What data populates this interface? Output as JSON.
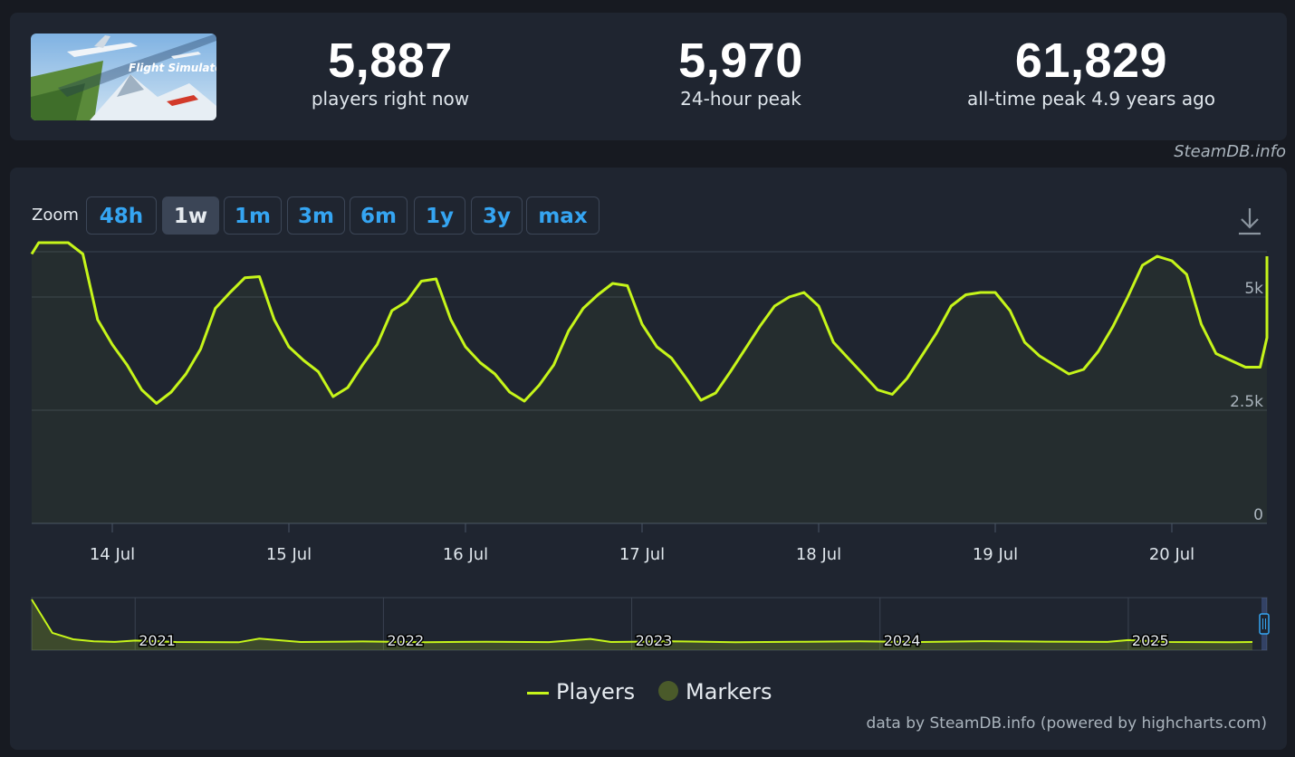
{
  "header": {
    "thumbnail": {
      "label": "Flight Simulator",
      "alt": "Microsoft Flight Simulator"
    },
    "stats": [
      {
        "value": "5,887",
        "label": "players right now"
      },
      {
        "value": "5,970",
        "label": "24-hour peak"
      },
      {
        "value": "61,829",
        "label": "all-time peak 4.9 years ago"
      }
    ],
    "credit": "SteamDB.info"
  },
  "zoom": {
    "label": "Zoom",
    "buttons": [
      "48h",
      "1w",
      "1m",
      "3m",
      "6m",
      "1y",
      "3y",
      "max"
    ],
    "active": "1w"
  },
  "download_icon": "download-icon",
  "colors": {
    "line": "#c6f51a",
    "background": "#1f2530",
    "accent": "#35a5f2",
    "marker": "#4a5a2a"
  },
  "chart_data": [
    {
      "type": "line",
      "ylim": [
        0,
        6000
      ],
      "yticks": [
        "0",
        "2.5k",
        "5k"
      ],
      "x_tick_labels": [
        "14 Jul",
        "15 Jul",
        "16 Jul",
        "17 Jul",
        "18 Jul",
        "19 Jul",
        "20 Jul"
      ],
      "grid": true,
      "series": [
        {
          "name": "Players",
          "x": [
            "13 Jul 12:00",
            "13 Jul 14:00",
            "13 Jul 16:00",
            "13 Jul 18:00",
            "13 Jul 20:00",
            "13 Jul 22:00",
            "14 Jul 00:00",
            "14 Jul 02:00",
            "14 Jul 04:00",
            "14 Jul 06:00",
            "14 Jul 08:00",
            "14 Jul 10:00",
            "14 Jul 12:00",
            "14 Jul 14:00",
            "14 Jul 16:00",
            "14 Jul 18:00",
            "14 Jul 20:00",
            "14 Jul 22:00",
            "15 Jul 00:00",
            "15 Jul 02:00",
            "15 Jul 04:00",
            "15 Jul 06:00",
            "15 Jul 08:00",
            "15 Jul 10:00",
            "15 Jul 12:00",
            "15 Jul 14:00",
            "15 Jul 16:00",
            "15 Jul 18:00",
            "15 Jul 20:00",
            "15 Jul 22:00",
            "16 Jul 00:00",
            "16 Jul 02:00",
            "16 Jul 04:00",
            "16 Jul 06:00",
            "16 Jul 08:00",
            "16 Jul 10:00",
            "16 Jul 12:00",
            "16 Jul 14:00",
            "16 Jul 16:00",
            "16 Jul 18:00",
            "16 Jul 20:00",
            "16 Jul 22:00",
            "17 Jul 00:00",
            "17 Jul 02:00",
            "17 Jul 04:00",
            "17 Jul 06:00",
            "17 Jul 08:00",
            "17 Jul 10:00",
            "17 Jul 12:00",
            "17 Jul 14:00",
            "17 Jul 16:00",
            "17 Jul 18:00",
            "17 Jul 20:00",
            "17 Jul 22:00",
            "18 Jul 00:00",
            "18 Jul 02:00",
            "18 Jul 04:00",
            "18 Jul 06:00",
            "18 Jul 08:00",
            "18 Jul 10:00",
            "18 Jul 12:00",
            "18 Jul 14:00",
            "18 Jul 16:00",
            "18 Jul 18:00",
            "18 Jul 20:00",
            "18 Jul 22:00",
            "19 Jul 00:00",
            "19 Jul 02:00",
            "19 Jul 04:00",
            "19 Jul 06:00",
            "19 Jul 08:00",
            "19 Jul 10:00",
            "19 Jul 12:00",
            "19 Jul 14:00",
            "19 Jul 16:00",
            "19 Jul 18:00",
            "19 Jul 20:00",
            "19 Jul 22:00",
            "20 Jul 00:00",
            "20 Jul 02:00",
            "20 Jul 04:00",
            "20 Jul 06:00",
            "20 Jul 08:00",
            "20 Jul 10:00",
            "20 Jul 12:00",
            "20 Jul 14:00",
            "20 Jul 16:00"
          ],
          "values": [
            5950,
            6200,
            6200,
            6200,
            5950,
            4500,
            3950,
            3500,
            2950,
            2650,
            2900,
            3300,
            3850,
            4750,
            5100,
            5425,
            5450,
            4500,
            3900,
            3600,
            3350,
            2800,
            3000,
            3500,
            3950,
            4700,
            4900,
            5350,
            5400,
            4500,
            3900,
            3550,
            3300,
            2900,
            2700,
            3050,
            3500,
            4250,
            4750,
            5050,
            5300,
            5250,
            4400,
            3900,
            3650,
            3200,
            2720,
            2880,
            3350,
            3850,
            4350,
            4800,
            5000,
            5100,
            4800,
            4000,
            3650,
            3300,
            2950,
            2850,
            3200,
            3700,
            4200,
            4800,
            5050,
            5100,
            5100,
            4700,
            4000,
            3700,
            3500,
            3300,
            3400,
            3800,
            4350,
            5000,
            5700,
            5900,
            5800,
            5500,
            4400,
            3750,
            3600,
            3450,
            3450,
            4100,
            5900
          ]
        }
      ]
    },
    {
      "type": "area",
      "x_tick_labels": [
        "2021",
        "2022",
        "2023",
        "2024",
        "2025"
      ],
      "series": [
        {
          "name": "Players",
          "x": [
            "Aug 2020",
            "Sep 2020",
            "Oct 2020",
            "Nov 2020",
            "Dec 2020",
            "Jan 2021",
            "Mar 2021",
            "Jun 2021",
            "Jul 2021",
            "Sep 2021",
            "Dec 2021",
            "Mar 2022",
            "Jun 2022",
            "Sep 2022",
            "Nov 2022",
            "Dec 2022",
            "Mar 2023",
            "Jun 2023",
            "Sep 2023",
            "Dec 2023",
            "Mar 2024",
            "Jun 2024",
            "Sep 2024",
            "Dec 2024",
            "Jan 2025",
            "Mar 2025",
            "Jun 2025",
            "Jul 2025"
          ],
          "values": [
            61829,
            18000,
            9500,
            6800,
            6100,
            7800,
            6000,
            5600,
            10400,
            5900,
            6600,
            5700,
            6300,
            5800,
            10000,
            6000,
            6900,
            5600,
            6200,
            6800,
            6000,
            7000,
            6400,
            6100,
            8400,
            6000,
            5700,
            5900
          ]
        },
        {
          "name": "Markers",
          "values": []
        }
      ]
    }
  ],
  "legend": {
    "players": "Players",
    "markers": "Markers"
  },
  "footer": "data by SteamDB.info (powered by highcharts.com)"
}
